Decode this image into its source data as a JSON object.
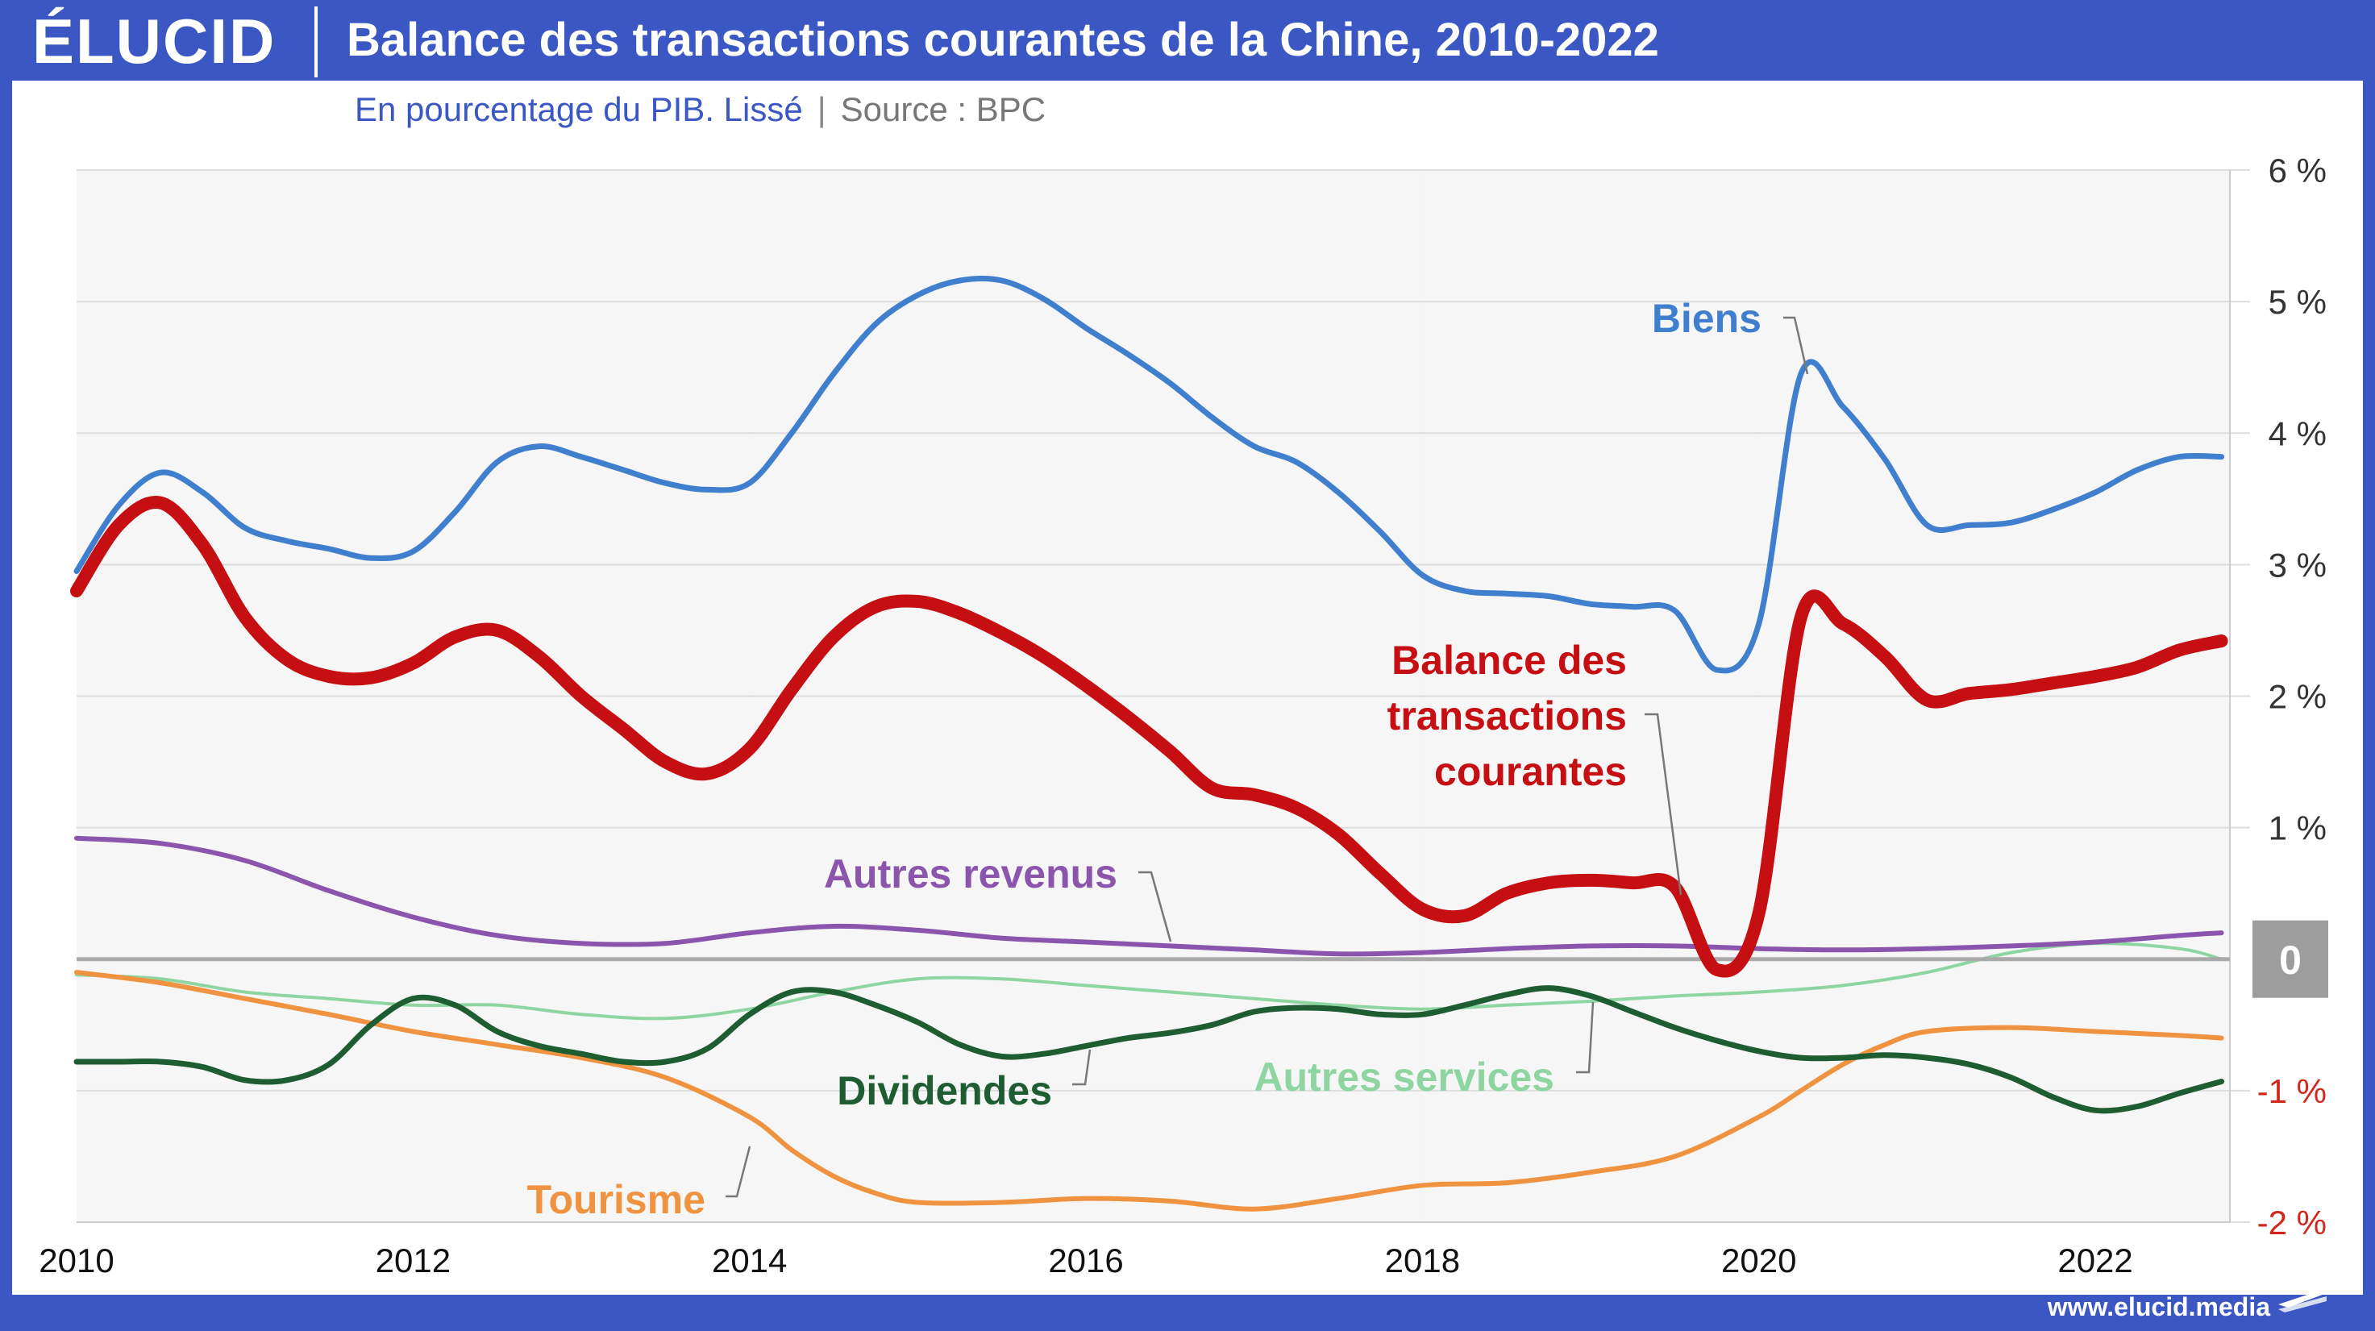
{
  "header": {
    "logo": "ÉLUCID",
    "title": "Balance des transactions courantes de la Chine, 2010-2022",
    "subtitle": "En pourcentage du PIB. Lissé",
    "separator": "|",
    "source": "Source : BPC"
  },
  "footer": {
    "url": "www.elucid.media"
  },
  "colors": {
    "brand": "#3a57c4",
    "biens": "#3f7fce",
    "balance": "#c50f12",
    "autres_revenus": "#8b55ad",
    "dividendes": "#1e5c31",
    "autres_services": "#8ed5a2",
    "tourisme": "#ef9340",
    "negative_tick": "#d1271c"
  },
  "chart_data": {
    "type": "line",
    "title": "Balance des transactions courantes de la Chine, 2010-2022",
    "subtitle": "En pourcentage du PIB. Lissé",
    "ylim": [
      -2,
      6
    ],
    "xlim": [
      2010,
      2022.8
    ],
    "grid": true,
    "y_ticks": [
      {
        "value": 6,
        "label": "6 %"
      },
      {
        "value": 5,
        "label": "5 %"
      },
      {
        "value": 4,
        "label": "4 %"
      },
      {
        "value": 3,
        "label": "3 %"
      },
      {
        "value": 2,
        "label": "2 %"
      },
      {
        "value": 1,
        "label": "1 %"
      },
      {
        "value": 0,
        "label": "0"
      },
      {
        "value": -1,
        "label": "-1 %"
      },
      {
        "value": -2,
        "label": "-2 %"
      }
    ],
    "x_ticks": [
      "2010",
      "2012",
      "2014",
      "2016",
      "2018",
      "2020",
      "2022"
    ],
    "series": [
      {
        "key": "biens",
        "name": "Biens",
        "points": [
          [
            2010,
            2.95
          ],
          [
            2010.25,
            3.45
          ],
          [
            2010.5,
            3.7
          ],
          [
            2010.75,
            3.55
          ],
          [
            2011,
            3.28
          ],
          [
            2011.25,
            3.18
          ],
          [
            2011.5,
            3.12
          ],
          [
            2011.75,
            3.05
          ],
          [
            2012,
            3.1
          ],
          [
            2012.25,
            3.4
          ],
          [
            2012.5,
            3.78
          ],
          [
            2012.75,
            3.9
          ],
          [
            2013,
            3.82
          ],
          [
            2013.25,
            3.72
          ],
          [
            2013.5,
            3.62
          ],
          [
            2013.75,
            3.57
          ],
          [
            2014,
            3.62
          ],
          [
            2014.25,
            4.0
          ],
          [
            2014.5,
            4.45
          ],
          [
            2014.75,
            4.83
          ],
          [
            2015,
            5.05
          ],
          [
            2015.25,
            5.16
          ],
          [
            2015.5,
            5.16
          ],
          [
            2015.75,
            5.02
          ],
          [
            2016,
            4.8
          ],
          [
            2016.25,
            4.6
          ],
          [
            2016.5,
            4.38
          ],
          [
            2016.75,
            4.12
          ],
          [
            2017,
            3.9
          ],
          [
            2017.25,
            3.78
          ],
          [
            2017.5,
            3.55
          ],
          [
            2017.75,
            3.25
          ],
          [
            2018,
            2.92
          ],
          [
            2018.25,
            2.8
          ],
          [
            2018.5,
            2.78
          ],
          [
            2018.75,
            2.76
          ],
          [
            2019,
            2.7
          ],
          [
            2019.25,
            2.68
          ],
          [
            2019.5,
            2.65
          ],
          [
            2019.75,
            2.2
          ],
          [
            2020,
            2.55
          ],
          [
            2020.25,
            4.45
          ],
          [
            2020.5,
            4.2
          ],
          [
            2020.75,
            3.8
          ],
          [
            2021,
            3.3
          ],
          [
            2021.25,
            3.3
          ],
          [
            2021.5,
            3.32
          ],
          [
            2021.75,
            3.42
          ],
          [
            2022,
            3.55
          ],
          [
            2022.25,
            3.72
          ],
          [
            2022.5,
            3.82
          ],
          [
            2022.75,
            3.82
          ]
        ]
      },
      {
        "key": "balance",
        "name": "Balance des transactions courantes",
        "points": [
          [
            2010,
            2.8
          ],
          [
            2010.25,
            3.3
          ],
          [
            2010.5,
            3.47
          ],
          [
            2010.75,
            3.15
          ],
          [
            2011,
            2.6
          ],
          [
            2011.25,
            2.28
          ],
          [
            2011.5,
            2.15
          ],
          [
            2011.75,
            2.14
          ],
          [
            2012,
            2.25
          ],
          [
            2012.25,
            2.45
          ],
          [
            2012.5,
            2.5
          ],
          [
            2012.75,
            2.3
          ],
          [
            2013,
            2.0
          ],
          [
            2013.25,
            1.75
          ],
          [
            2013.5,
            1.5
          ],
          [
            2013.75,
            1.41
          ],
          [
            2014,
            1.6
          ],
          [
            2014.25,
            2.05
          ],
          [
            2014.5,
            2.45
          ],
          [
            2014.75,
            2.68
          ],
          [
            2015,
            2.72
          ],
          [
            2015.25,
            2.63
          ],
          [
            2015.5,
            2.48
          ],
          [
            2015.75,
            2.3
          ],
          [
            2016,
            2.08
          ],
          [
            2016.25,
            1.84
          ],
          [
            2016.5,
            1.58
          ],
          [
            2016.75,
            1.3
          ],
          [
            2017,
            1.25
          ],
          [
            2017.25,
            1.15
          ],
          [
            2017.5,
            0.95
          ],
          [
            2017.75,
            0.65
          ],
          [
            2018,
            0.38
          ],
          [
            2018.25,
            0.33
          ],
          [
            2018.5,
            0.5
          ],
          [
            2018.75,
            0.58
          ],
          [
            2019,
            0.6
          ],
          [
            2019.25,
            0.58
          ],
          [
            2019.5,
            0.55
          ],
          [
            2019.75,
            -0.08
          ],
          [
            2020,
            0.35
          ],
          [
            2020.25,
            2.6
          ],
          [
            2020.5,
            2.55
          ],
          [
            2020.75,
            2.3
          ],
          [
            2021,
            1.97
          ],
          [
            2021.25,
            2.02
          ],
          [
            2021.5,
            2.05
          ],
          [
            2021.75,
            2.1
          ],
          [
            2022,
            2.15
          ],
          [
            2022.25,
            2.22
          ],
          [
            2022.5,
            2.35
          ],
          [
            2022.75,
            2.42
          ]
        ]
      },
      {
        "key": "autres_revenus",
        "name": "Autres revenus",
        "points": [
          [
            2010,
            0.92
          ],
          [
            2010.5,
            0.88
          ],
          [
            2011,
            0.75
          ],
          [
            2011.5,
            0.52
          ],
          [
            2012,
            0.32
          ],
          [
            2012.5,
            0.18
          ],
          [
            2013,
            0.12
          ],
          [
            2013.5,
            0.12
          ],
          [
            2014,
            0.2
          ],
          [
            2014.5,
            0.25
          ],
          [
            2015,
            0.22
          ],
          [
            2015.5,
            0.16
          ],
          [
            2016,
            0.13
          ],
          [
            2016.5,
            0.1
          ],
          [
            2017,
            0.07
          ],
          [
            2017.5,
            0.04
          ],
          [
            2018,
            0.05
          ],
          [
            2018.5,
            0.08
          ],
          [
            2019,
            0.1
          ],
          [
            2019.5,
            0.1
          ],
          [
            2020,
            0.08
          ],
          [
            2020.5,
            0.07
          ],
          [
            2021,
            0.08
          ],
          [
            2021.5,
            0.1
          ],
          [
            2022,
            0.13
          ],
          [
            2022.5,
            0.18
          ],
          [
            2022.75,
            0.2
          ]
        ]
      },
      {
        "key": "autres_services",
        "name": "Autres services",
        "points": [
          [
            2010,
            -0.12
          ],
          [
            2010.5,
            -0.15
          ],
          [
            2011,
            -0.25
          ],
          [
            2011.5,
            -0.3
          ],
          [
            2012,
            -0.35
          ],
          [
            2012.5,
            -0.35
          ],
          [
            2013,
            -0.42
          ],
          [
            2013.5,
            -0.45
          ],
          [
            2014,
            -0.38
          ],
          [
            2014.5,
            -0.25
          ],
          [
            2015,
            -0.15
          ],
          [
            2015.5,
            -0.15
          ],
          [
            2016,
            -0.2
          ],
          [
            2016.5,
            -0.25
          ],
          [
            2017,
            -0.3
          ],
          [
            2017.5,
            -0.35
          ],
          [
            2018,
            -0.38
          ],
          [
            2018.5,
            -0.35
          ],
          [
            2019,
            -0.32
          ],
          [
            2019.5,
            -0.28
          ],
          [
            2020,
            -0.25
          ],
          [
            2020.5,
            -0.2
          ],
          [
            2021,
            -0.1
          ],
          [
            2021.5,
            0.05
          ],
          [
            2022,
            0.12
          ],
          [
            2022.5,
            0.08
          ],
          [
            2022.75,
            0.0
          ]
        ]
      },
      {
        "key": "dividendes",
        "name": "Dividendes",
        "points": [
          [
            2010,
            -0.78
          ],
          [
            2010.25,
            -0.78
          ],
          [
            2010.5,
            -0.78
          ],
          [
            2010.75,
            -0.82
          ],
          [
            2011,
            -0.92
          ],
          [
            2011.25,
            -0.92
          ],
          [
            2011.5,
            -0.8
          ],
          [
            2011.75,
            -0.5
          ],
          [
            2012,
            -0.3
          ],
          [
            2012.25,
            -0.35
          ],
          [
            2012.5,
            -0.55
          ],
          [
            2012.75,
            -0.66
          ],
          [
            2013,
            -0.72
          ],
          [
            2013.25,
            -0.78
          ],
          [
            2013.5,
            -0.78
          ],
          [
            2013.75,
            -0.68
          ],
          [
            2014,
            -0.42
          ],
          [
            2014.25,
            -0.25
          ],
          [
            2014.5,
            -0.25
          ],
          [
            2014.75,
            -0.35
          ],
          [
            2015,
            -0.48
          ],
          [
            2015.25,
            -0.65
          ],
          [
            2015.5,
            -0.74
          ],
          [
            2015.75,
            -0.72
          ],
          [
            2016,
            -0.66
          ],
          [
            2016.25,
            -0.6
          ],
          [
            2016.5,
            -0.56
          ],
          [
            2016.75,
            -0.5
          ],
          [
            2017,
            -0.4
          ],
          [
            2017.25,
            -0.37
          ],
          [
            2017.5,
            -0.38
          ],
          [
            2017.75,
            -0.42
          ],
          [
            2018,
            -0.42
          ],
          [
            2018.25,
            -0.35
          ],
          [
            2018.5,
            -0.27
          ],
          [
            2018.75,
            -0.22
          ],
          [
            2019,
            -0.28
          ],
          [
            2019.25,
            -0.4
          ],
          [
            2019.5,
            -0.52
          ],
          [
            2019.75,
            -0.62
          ],
          [
            2020,
            -0.7
          ],
          [
            2020.25,
            -0.75
          ],
          [
            2020.5,
            -0.75
          ],
          [
            2020.75,
            -0.73
          ],
          [
            2021,
            -0.75
          ],
          [
            2021.25,
            -0.8
          ],
          [
            2021.5,
            -0.9
          ],
          [
            2021.75,
            -1.05
          ],
          [
            2022,
            -1.15
          ],
          [
            2022.25,
            -1.12
          ],
          [
            2022.5,
            -1.02
          ],
          [
            2022.75,
            -0.93
          ]
        ]
      },
      {
        "key": "tourisme",
        "name": "Tourisme",
        "points": [
          [
            2010,
            -0.1
          ],
          [
            2010.5,
            -0.18
          ],
          [
            2011,
            -0.3
          ],
          [
            2011.5,
            -0.42
          ],
          [
            2012,
            -0.55
          ],
          [
            2012.5,
            -0.65
          ],
          [
            2013,
            -0.75
          ],
          [
            2013.5,
            -0.9
          ],
          [
            2014,
            -1.2
          ],
          [
            2014.25,
            -1.45
          ],
          [
            2014.5,
            -1.65
          ],
          [
            2014.75,
            -1.78
          ],
          [
            2015,
            -1.85
          ],
          [
            2015.5,
            -1.85
          ],
          [
            2016,
            -1.82
          ],
          [
            2016.5,
            -1.84
          ],
          [
            2017,
            -1.9
          ],
          [
            2017.5,
            -1.82
          ],
          [
            2018,
            -1.72
          ],
          [
            2018.5,
            -1.7
          ],
          [
            2019,
            -1.62
          ],
          [
            2019.5,
            -1.5
          ],
          [
            2020,
            -1.2
          ],
          [
            2020.25,
            -1.0
          ],
          [
            2020.5,
            -0.8
          ],
          [
            2020.75,
            -0.65
          ],
          [
            2021,
            -0.55
          ],
          [
            2021.5,
            -0.52
          ],
          [
            2022,
            -0.55
          ],
          [
            2022.5,
            -0.58
          ],
          [
            2022.75,
            -0.6
          ]
        ]
      }
    ],
    "annotations": {
      "biens": "Biens",
      "balance": [
        "Balance des",
        "transactions",
        "courantes"
      ],
      "autres_revenus": "Autres revenus",
      "dividendes": "Dividendes",
      "autres_services": "Autres services",
      "tourisme": "Tourisme"
    }
  }
}
